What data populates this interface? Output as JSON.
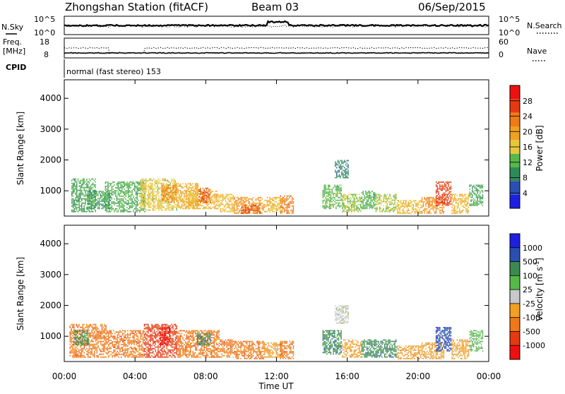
{
  "header": {
    "station": "Zhongshan Station (fitACF)",
    "beam": "Beam 03",
    "date": "06/Sep/2015"
  },
  "top_panels": {
    "nsky": {
      "label": "N.Sky",
      "tick_top": "10^5",
      "tick_bottom": "10^0"
    },
    "nsearch": {
      "label": "N.Search",
      "tick_top": "10^5",
      "tick_bottom": "10^0"
    },
    "freq": {
      "label_line1": "Freq.",
      "label_line2": "[MHz]",
      "tick_top": "18",
      "tick_bottom": "8"
    },
    "nave": {
      "label": "Nave",
      "tick_top": "60",
      "tick_bottom": "0"
    },
    "cpid": {
      "label": "CPID",
      "value": "normal (fast stereo) 153"
    }
  },
  "colors": {
    "power_scale": [
      "#1f1fe0",
      "#2b4fb0",
      "#2f8a5a",
      "#57b84a",
      "#e8c83a",
      "#f2a020",
      "#ef7a16",
      "#e53a10",
      "#ee1010"
    ],
    "velocity_scale": [
      "#ee1010",
      "#e53a10",
      "#f07816",
      "#f2a020",
      "#c8c8c8",
      "#57b84a",
      "#3c8a50",
      "#2b4fb0",
      "#1f1fe0"
    ]
  },
  "chart_data": [
    {
      "type": "heatmap",
      "panel": "power",
      "ylabel": "Slant Range [km]",
      "ylim": [
        180,
        4600
      ],
      "yticks": [
        1000,
        2000,
        3000,
        4000
      ],
      "ytick_labels": [
        "1000",
        "2000",
        "3000",
        "4000"
      ],
      "xlim_hours": [
        0,
        24
      ],
      "xticks": [
        "00:00",
        "04:00",
        "08:00",
        "12:00",
        "16:00",
        "20:00",
        "00:00"
      ],
      "colorbar": {
        "label": "Power [dB]",
        "range": [
          0,
          32
        ],
        "ticks": [
          4,
          8,
          12,
          16,
          20,
          24,
          28
        ],
        "tick_labels": [
          "4",
          "8",
          "12",
          "16",
          "20",
          "24",
          "28"
        ]
      },
      "echo_regions": [
        {
          "t0": 0.4,
          "t1": 1.8,
          "r0": 300,
          "r1": 1400,
          "v": 10
        },
        {
          "t0": 1.3,
          "t1": 2.6,
          "r0": 400,
          "r1": 1000,
          "v": 9
        },
        {
          "t0": 2.3,
          "t1": 4.6,
          "r0": 300,
          "r1": 1300,
          "v": 11
        },
        {
          "t0": 4.3,
          "t1": 6.4,
          "r0": 350,
          "r1": 1400,
          "v": 16
        },
        {
          "t0": 5.5,
          "t1": 6.4,
          "r0": 600,
          "r1": 1200,
          "v": 22
        },
        {
          "t0": 6.4,
          "t1": 7.6,
          "r0": 400,
          "r1": 1250,
          "v": 19
        },
        {
          "t0": 7.0,
          "t1": 8.8,
          "r0": 400,
          "r1": 1000,
          "v": 18
        },
        {
          "t0": 7.6,
          "t1": 8.3,
          "r0": 600,
          "r1": 1100,
          "v": 26
        },
        {
          "t0": 8.8,
          "t1": 9.6,
          "r0": 300,
          "r1": 900,
          "v": 17
        },
        {
          "t0": 9.6,
          "t1": 11.3,
          "r0": 250,
          "r1": 800,
          "v": 21
        },
        {
          "t0": 10.0,
          "t1": 11.1,
          "r0": 250,
          "r1": 550,
          "v": 26
        },
        {
          "t0": 11.3,
          "t1": 12.4,
          "r0": 300,
          "r1": 800,
          "v": 18
        },
        {
          "t0": 12.2,
          "t1": 13.0,
          "r0": 250,
          "r1": 850,
          "v": 24
        },
        {
          "t0": 14.6,
          "t1": 15.7,
          "r0": 400,
          "r1": 1200,
          "v": 12
        },
        {
          "t0": 15.3,
          "t1": 16.1,
          "r0": 1400,
          "r1": 2000,
          "v": 7
        },
        {
          "t0": 15.7,
          "t1": 16.8,
          "r0": 300,
          "r1": 900,
          "v": 14
        },
        {
          "t0": 16.8,
          "t1": 17.6,
          "r0": 400,
          "r1": 1000,
          "v": 11
        },
        {
          "t0": 17.6,
          "t1": 18.8,
          "r0": 300,
          "r1": 900,
          "v": 14
        },
        {
          "t0": 18.8,
          "t1": 20.2,
          "r0": 250,
          "r1": 700,
          "v": 18
        },
        {
          "t0": 20.2,
          "t1": 21.5,
          "r0": 250,
          "r1": 800,
          "v": 22
        },
        {
          "t0": 21.0,
          "t1": 21.9,
          "r0": 500,
          "r1": 1300,
          "v": 28
        },
        {
          "t0": 21.9,
          "t1": 22.9,
          "r0": 250,
          "r1": 900,
          "v": 18
        },
        {
          "t0": 22.9,
          "t1": 23.7,
          "r0": 500,
          "r1": 1200,
          "v": 10
        }
      ]
    },
    {
      "type": "heatmap",
      "panel": "velocity",
      "ylabel": "Slant Range [km]",
      "ylim": [
        180,
        4600
      ],
      "yticks": [
        1000,
        2000,
        3000,
        4000
      ],
      "ytick_labels": [
        "1000",
        "2000",
        "3000",
        "4000"
      ],
      "xlim_hours": [
        0,
        24
      ],
      "xticks": [
        "00:00",
        "04:00",
        "08:00",
        "12:00",
        "16:00",
        "20:00",
        "00:00"
      ],
      "xlabel": "Time UT",
      "colorbar": {
        "label": "Velocity [m s",
        "label_sup": "-1",
        "label_end": "]",
        "tick_labels": [
          "-1000",
          "-500",
          "-100",
          "-25",
          "25",
          "100",
          "500",
          "1000"
        ]
      },
      "echo_regions": [
        {
          "t0": 0.3,
          "t1": 2.4,
          "r0": 300,
          "r1": 1400,
          "v": 2
        },
        {
          "t0": 0.5,
          "t1": 1.4,
          "r0": 700,
          "r1": 1200,
          "v": 6
        },
        {
          "t0": 2.4,
          "t1": 4.5,
          "r0": 300,
          "r1": 1200,
          "v": 2
        },
        {
          "t0": 4.5,
          "t1": 6.4,
          "r0": 300,
          "r1": 1400,
          "v": 1
        },
        {
          "t0": 5.4,
          "t1": 6.0,
          "r0": 700,
          "r1": 1300,
          "v": 0
        },
        {
          "t0": 6.4,
          "t1": 8.8,
          "r0": 300,
          "r1": 1200,
          "v": 2
        },
        {
          "t0": 7.5,
          "t1": 8.3,
          "r0": 700,
          "r1": 1100,
          "v": 6
        },
        {
          "t0": 8.8,
          "t1": 9.6,
          "r0": 300,
          "r1": 900,
          "v": 2
        },
        {
          "t0": 9.6,
          "t1": 11.3,
          "r0": 250,
          "r1": 850,
          "v": 2
        },
        {
          "t0": 11.3,
          "t1": 12.4,
          "r0": 300,
          "r1": 800,
          "v": 3
        },
        {
          "t0": 12.2,
          "t1": 13.0,
          "r0": 250,
          "r1": 850,
          "v": 2
        },
        {
          "t0": 14.6,
          "t1": 15.7,
          "r0": 400,
          "r1": 1200,
          "v": 6
        },
        {
          "t0": 15.3,
          "t1": 16.1,
          "r0": 1400,
          "r1": 2000,
          "v": 4
        },
        {
          "t0": 15.7,
          "t1": 16.8,
          "r0": 300,
          "r1": 900,
          "v": 3
        },
        {
          "t0": 16.8,
          "t1": 18.8,
          "r0": 300,
          "r1": 900,
          "v": 6
        },
        {
          "t0": 18.8,
          "t1": 20.2,
          "r0": 250,
          "r1": 700,
          "v": 3
        },
        {
          "t0": 20.2,
          "t1": 21.5,
          "r0": 250,
          "r1": 800,
          "v": 3
        },
        {
          "t0": 21.0,
          "t1": 21.9,
          "r0": 500,
          "r1": 1300,
          "v": 7
        },
        {
          "t0": 21.9,
          "t1": 22.9,
          "r0": 250,
          "r1": 900,
          "v": 3
        },
        {
          "t0": 22.9,
          "t1": 23.7,
          "r0": 500,
          "r1": 1200,
          "v": 5
        }
      ]
    }
  ]
}
